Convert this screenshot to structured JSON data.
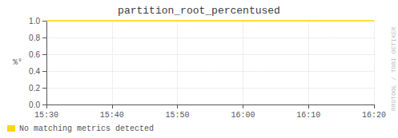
{
  "chart_data": {
    "type": "line",
    "title": "partition_root_percentused",
    "ylabel": "%°",
    "categories": [
      "15:30",
      "15:40",
      "15:50",
      "16:00",
      "16:10",
      "16:20"
    ],
    "series": [
      {
        "name": "No matching metrics detected",
        "color": "#FFD700",
        "values": [
          1.0,
          1.0,
          1.0,
          1.0,
          1.0,
          1.0
        ]
      }
    ],
    "ylim": [
      0.0,
      1.0
    ],
    "yticks": [
      {
        "value": 0.0,
        "label": "0.0"
      },
      0.2,
      0.4,
      0.6,
      0.8,
      {
        "value": 1.0,
        "label": "1.0"
      }
    ],
    "grid": true,
    "legend": "lower left",
    "annotations": [
      "RRDTOOL / TOBI OETIKER"
    ]
  }
}
